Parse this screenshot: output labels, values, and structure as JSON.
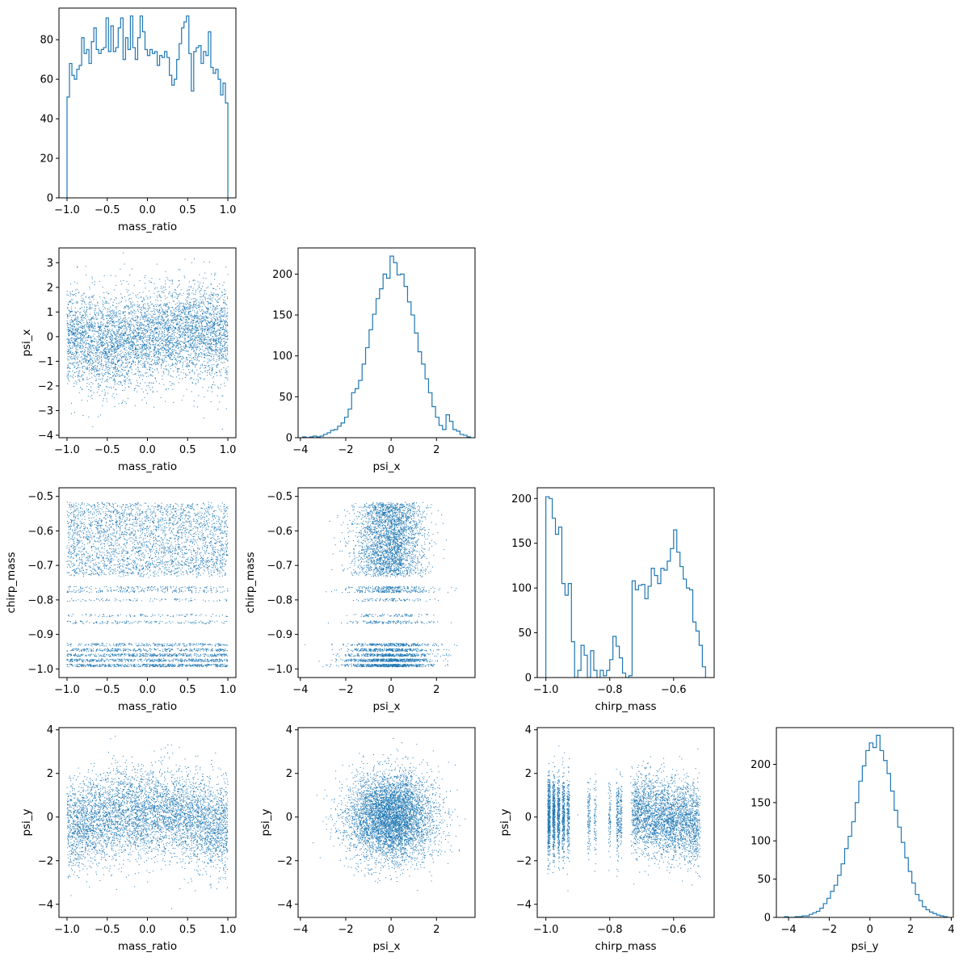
{
  "figure": {
    "type": "corner-plot",
    "background": "#ffffff"
  },
  "colors": {
    "series": "#1f77b4",
    "axes": "#000000"
  },
  "chart_data": [
    {
      "id": "hist-mass_ratio",
      "type": "histogram",
      "row": 0,
      "col": 0,
      "xlabel": "mass_ratio",
      "ylabel": "",
      "xlim": [
        -1.1,
        1.1
      ],
      "ylim": [
        0,
        96
      ],
      "xticks": [
        -1.0,
        -0.5,
        0.0,
        0.5,
        1.0
      ],
      "xtick_labels": [
        "−1.0",
        "−0.5",
        "0.0",
        "0.5",
        "1.0"
      ],
      "yticks": [
        0,
        20,
        40,
        60,
        80
      ],
      "ytick_labels": [
        "0",
        "20",
        "40",
        "60",
        "80"
      ],
      "bin_range": [
        -1.0,
        1.0
      ],
      "counts": [
        51,
        68,
        62,
        60,
        65,
        67,
        81,
        73,
        75,
        68,
        79,
        86,
        75,
        73,
        75,
        76,
        91,
        74,
        87,
        74,
        76,
        86,
        91,
        70,
        81,
        75,
        92,
        76,
        70,
        81,
        92,
        84,
        75,
        72,
        75,
        73,
        74,
        67,
        72,
        71,
        74,
        71,
        62,
        57,
        60,
        70,
        78,
        86,
        89,
        92,
        73,
        54,
        74,
        76,
        77,
        68,
        74,
        72,
        84,
        66,
        63,
        65,
        60,
        52,
        58,
        48
      ]
    },
    {
      "id": "scatter-mass_ratio-psi_x",
      "type": "scatter",
      "row": 1,
      "col": 0,
      "xlabel": "mass_ratio",
      "ylabel": "psi_x",
      "xlim": [
        -1.1,
        1.1
      ],
      "ylim": [
        -4.1,
        3.6
      ],
      "xticks": [
        -1.0,
        -0.5,
        0.0,
        0.5,
        1.0
      ],
      "xtick_labels": [
        "−1.0",
        "−0.5",
        "0.0",
        "0.5",
        "1.0"
      ],
      "yticks": [
        -4,
        -3,
        -2,
        -1,
        0,
        1,
        2,
        3
      ],
      "ytick_labels": [
        "−4",
        "−3",
        "−2",
        "−1",
        "0",
        "1",
        "2",
        "3"
      ],
      "point_samples": [
        [
          -0.9,
          -0.3
        ],
        [
          -0.8,
          0.2
        ],
        [
          -0.7,
          -0.5
        ],
        [
          -0.6,
          -0.4
        ],
        [
          -0.5,
          0.4
        ],
        [
          -0.4,
          -0.2
        ],
        [
          -0.3,
          0.1
        ],
        [
          -0.2,
          0.6
        ],
        [
          -0.1,
          -0.1
        ],
        [
          0.0,
          0.2
        ],
        [
          0.1,
          0.3
        ],
        [
          0.2,
          -0.4
        ],
        [
          0.3,
          0.1
        ],
        [
          0.4,
          -0.3
        ],
        [
          0.5,
          -0.2
        ],
        [
          0.6,
          0.5
        ],
        [
          0.7,
          -0.6
        ],
        [
          0.8,
          -0.5
        ],
        [
          0.9,
          0.1
        ],
        [
          -0.95,
          1.4
        ],
        [
          -0.55,
          -1.6
        ],
        [
          0.05,
          2.2
        ],
        [
          0.45,
          -2.4
        ],
        [
          0.85,
          1.9
        ],
        [
          -0.3,
          3.4
        ],
        [
          -0.8,
          -3.2
        ],
        [
          0.55,
          3.0
        ],
        [
          0.7,
          -3.3
        ]
      ]
    },
    {
      "id": "hist-psi_x",
      "type": "histogram",
      "row": 1,
      "col": 1,
      "xlabel": "psi_x",
      "ylabel": "",
      "xlim": [
        -4.1,
        3.7
      ],
      "ylim": [
        0,
        232
      ],
      "xticks": [
        -4,
        -2,
        0,
        2
      ],
      "xtick_labels": [
        "−4",
        "−2",
        "0",
        "2"
      ],
      "yticks": [
        0,
        50,
        100,
        150,
        200
      ],
      "ytick_labels": [
        "0",
        "50",
        "100",
        "150",
        "200"
      ],
      "bin_range": [
        -3.9,
        3.5
      ],
      "counts": [
        1,
        0,
        1,
        2,
        1,
        2,
        4,
        6,
        9,
        10,
        14,
        18,
        25,
        35,
        55,
        60,
        70,
        90,
        110,
        132,
        151,
        170,
        182,
        200,
        195,
        222,
        214,
        199,
        200,
        185,
        166,
        150,
        128,
        105,
        90,
        72,
        55,
        38,
        25,
        15,
        10,
        28,
        20,
        10,
        8,
        4,
        3,
        1
      ]
    },
    {
      "id": "scatter-mass_ratio-chirp_mass",
      "type": "scatter",
      "row": 2,
      "col": 0,
      "xlabel": "mass_ratio",
      "ylabel": "chirp_mass",
      "xlim": [
        -1.1,
        1.1
      ],
      "ylim": [
        -1.025,
        -0.475
      ],
      "xticks": [
        -1.0,
        -0.5,
        0.0,
        0.5,
        1.0
      ],
      "xtick_labels": [
        "−1.0",
        "−0.5",
        "0.0",
        "0.5",
        "1.0"
      ],
      "yticks": [
        -1.0,
        -0.9,
        -0.8,
        -0.7,
        -0.6,
        -0.5
      ],
      "ytick_labels": [
        "−1.0",
        "−0.9",
        "−0.8",
        "−0.7",
        "−0.6",
        "−0.5"
      ],
      "point_samples": [
        [
          -0.9,
          -0.6
        ],
        [
          -0.6,
          -0.62
        ],
        [
          -0.2,
          -0.55
        ],
        [
          0.3,
          -0.6
        ],
        [
          0.7,
          -0.58
        ],
        [
          -0.8,
          -0.98
        ],
        [
          -0.3,
          -0.95
        ],
        [
          0.2,
          -0.97
        ],
        [
          0.6,
          -0.93
        ],
        [
          0.9,
          -0.99
        ],
        [
          -0.5,
          -0.77
        ],
        [
          0.1,
          -0.77
        ],
        [
          -0.4,
          -0.86
        ],
        [
          0.6,
          -0.86
        ]
      ]
    },
    {
      "id": "scatter-psi_x-chirp_mass",
      "type": "scatter",
      "row": 2,
      "col": 1,
      "xlabel": "psi_x",
      "ylabel": "chirp_mass",
      "xlim": [
        -4.1,
        3.7
      ],
      "ylim": [
        -1.025,
        -0.475
      ],
      "xticks": [
        -4,
        -2,
        0,
        2
      ],
      "xtick_labels": [
        "−4",
        "−2",
        "0",
        "2"
      ],
      "yticks": [
        -1.0,
        -0.9,
        -0.8,
        -0.7,
        -0.6,
        -0.5
      ],
      "ytick_labels": [
        "−1.0",
        "−0.9",
        "−0.8",
        "−0.7",
        "−0.6",
        "−0.5"
      ],
      "point_samples": [
        [
          0.0,
          -0.6
        ],
        [
          -0.5,
          -0.65
        ],
        [
          0.5,
          -0.58
        ],
        [
          -1.0,
          -0.55
        ],
        [
          1.0,
          -0.62
        ],
        [
          0.0,
          -0.97
        ],
        [
          -0.6,
          -0.95
        ],
        [
          0.6,
          -0.98
        ],
        [
          -0.2,
          -0.77
        ],
        [
          0.3,
          -0.86
        ],
        [
          -2.5,
          -0.62
        ],
        [
          2.8,
          -0.93
        ]
      ]
    },
    {
      "id": "hist-chirp_mass",
      "type": "histogram",
      "row": 2,
      "col": 2,
      "xlabel": "chirp_mass",
      "ylabel": "",
      "xlim": [
        -1.027,
        -0.473
      ],
      "ylim": [
        0,
        212
      ],
      "xticks": [
        -1.0,
        -0.8,
        -0.6
      ],
      "xtick_labels": [
        "−1.0",
        "−0.8",
        "−0.6"
      ],
      "yticks": [
        0,
        50,
        100,
        150,
        200
      ],
      "ytick_labels": [
        "0",
        "50",
        "100",
        "150",
        "200"
      ],
      "bin_range": [
        -1.0,
        -0.5
      ],
      "counts": [
        202,
        200,
        178,
        160,
        168,
        105,
        92,
        105,
        40,
        0,
        8,
        36,
        25,
        0,
        30,
        8,
        0,
        8,
        2,
        8,
        20,
        46,
        35,
        22,
        5,
        0,
        2,
        108,
        98,
        103,
        104,
        88,
        102,
        122,
        114,
        105,
        122,
        120,
        130,
        144,
        165,
        140,
        124,
        110,
        100,
        98,
        62,
        52,
        36,
        12
      ]
    },
    {
      "id": "scatter-mass_ratio-psi_y",
      "type": "scatter",
      "row": 3,
      "col": 0,
      "xlabel": "mass_ratio",
      "ylabel": "psi_y",
      "xlim": [
        -1.1,
        1.1
      ],
      "ylim": [
        -4.6,
        4.1
      ],
      "xticks": [
        -1.0,
        -0.5,
        0.0,
        0.5,
        1.0
      ],
      "xtick_labels": [
        "−1.0",
        "−0.5",
        "0.0",
        "0.5",
        "1.0"
      ],
      "yticks": [
        -4,
        -2,
        0,
        2,
        4
      ],
      "ytick_labels": [
        "−4",
        "−2",
        "0",
        "2",
        "4"
      ],
      "point_samples": [
        [
          -0.9,
          0.3
        ],
        [
          -0.6,
          0.5
        ],
        [
          -0.3,
          0.2
        ],
        [
          0.0,
          -0.1
        ],
        [
          0.3,
          -0.3
        ],
        [
          0.6,
          -0.6
        ],
        [
          0.9,
          -0.4
        ],
        [
          -0.4,
          3.7
        ],
        [
          0.8,
          2.6
        ],
        [
          -0.95,
          -3.6
        ],
        [
          0.3,
          -4.2
        ]
      ]
    },
    {
      "id": "scatter-psi_x-psi_y",
      "type": "scatter",
      "row": 3,
      "col": 1,
      "xlabel": "psi_x",
      "ylabel": "psi_y",
      "xlim": [
        -4.1,
        3.7
      ],
      "ylim": [
        -4.6,
        4.1
      ],
      "xticks": [
        -4,
        -2,
        0,
        2
      ],
      "xtick_labels": [
        "−4",
        "−2",
        "0",
        "2"
      ],
      "yticks": [
        -4,
        -2,
        0,
        2,
        4
      ],
      "ytick_labels": [
        "−4",
        "−2",
        "0",
        "2",
        "4"
      ],
      "point_samples": [
        [
          0.0,
          0.0
        ],
        [
          0.5,
          0.5
        ],
        [
          -0.5,
          -0.5
        ],
        [
          1.0,
          -0.8
        ],
        [
          -1.0,
          1.0
        ],
        [
          0.1,
          3.6
        ],
        [
          -3.0,
          -0.2
        ],
        [
          3.0,
          -1.5
        ]
      ]
    },
    {
      "id": "scatter-chirp_mass-psi_y",
      "type": "scatter",
      "row": 3,
      "col": 2,
      "xlabel": "chirp_mass",
      "ylabel": "psi_y",
      "xlim": [
        -1.027,
        -0.473
      ],
      "ylim": [
        -4.6,
        4.1
      ],
      "xticks": [
        -1.0,
        -0.8,
        -0.6
      ],
      "xtick_labels": [
        "−1.0",
        "−0.8",
        "−0.6"
      ],
      "yticks": [
        -4,
        -2,
        0,
        2,
        4
      ],
      "ytick_labels": [
        "−4",
        "−2",
        "0",
        "2",
        "4"
      ],
      "point_samples": [
        [
          -0.98,
          0.3
        ],
        [
          -0.95,
          -0.2
        ],
        [
          -0.9,
          0.1
        ],
        [
          -0.78,
          0.0
        ],
        [
          -0.65,
          0.3
        ],
        [
          -0.6,
          -0.5
        ],
        [
          -0.55,
          -0.8
        ],
        [
          -0.7,
          1.5
        ],
        [
          -0.62,
          -2.3
        ]
      ]
    },
    {
      "id": "hist-psi_y",
      "type": "histogram",
      "row": 3,
      "col": 3,
      "xlabel": "psi_y",
      "ylabel": "",
      "xlim": [
        -4.6,
        4.1
      ],
      "ylim": [
        0,
        248
      ],
      "xticks": [
        -4,
        -2,
        0,
        2,
        4
      ],
      "xtick_labels": [
        "−4",
        "−2",
        "0",
        "2",
        "4"
      ],
      "yticks": [
        0,
        50,
        100,
        150,
        200
      ],
      "ytick_labels": [
        "0",
        "50",
        "100",
        "150",
        "200"
      ],
      "bin_range": [
        -4.2,
        3.8
      ],
      "counts": [
        1,
        0,
        0,
        1,
        1,
        2,
        2,
        4,
        6,
        8,
        12,
        18,
        25,
        34,
        42,
        55,
        70,
        90,
        106,
        125,
        150,
        178,
        198,
        218,
        228,
        222,
        238,
        218,
        205,
        188,
        165,
        140,
        118,
        98,
        78,
        60,
        45,
        30,
        22,
        14,
        10,
        7,
        5,
        3,
        2,
        1
      ]
    }
  ]
}
